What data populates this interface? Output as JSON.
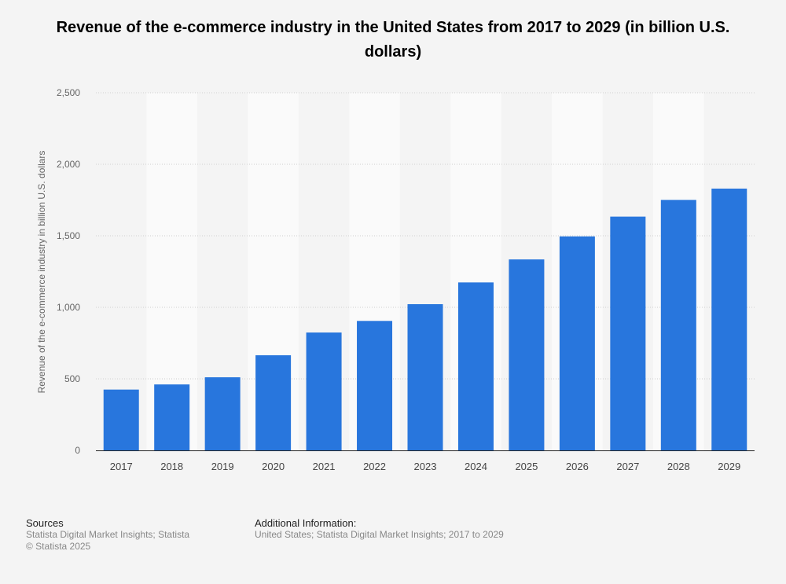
{
  "chart_data": {
    "type": "bar",
    "title": "Revenue of the e-commerce industry in the United States from 2017 to 2029 (in billion U.S. dollars)",
    "xlabel": "",
    "ylabel": "Revenue of the e-commerce industry in billion U.S. dollars",
    "ylim": [
      0,
      2500
    ],
    "yticks": [
      0,
      500,
      1000,
      1500,
      2000,
      2500
    ],
    "ytick_labels": [
      "0",
      "500",
      "1,000",
      "1,500",
      "2,000",
      "2,500"
    ],
    "grid": true,
    "categories": [
      "2017",
      "2018",
      "2019",
      "2020",
      "2021",
      "2022",
      "2023",
      "2024",
      "2025",
      "2026",
      "2027",
      "2028",
      "2029"
    ],
    "values": [
      425,
      461,
      511,
      665,
      824,
      905,
      1022,
      1174,
      1335,
      1496,
      1634,
      1751,
      1830
    ],
    "bar_color": "#2876dd"
  },
  "footer": {
    "sources_heading": "Sources",
    "sources_line1": "Statista Digital Market Insights; Statista",
    "sources_line2": "© Statista 2025",
    "info_heading": "Additional Information:",
    "info_line1": "United States; Statista Digital Market Insights; 2017 to 2029"
  }
}
